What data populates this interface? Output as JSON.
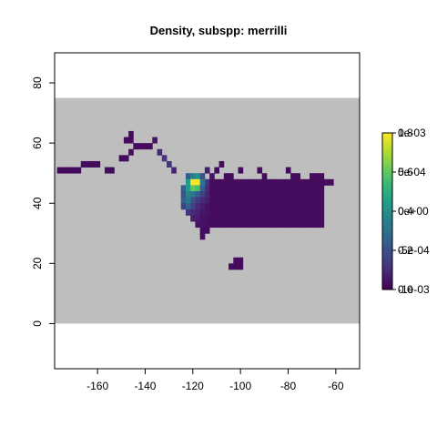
{
  "chart_data": {
    "type": "heatmap",
    "title": "Density, subspp: merrilli",
    "xlabel": "",
    "ylabel": "",
    "xlim": [
      -178,
      -50
    ],
    "ylim": [
      -15,
      90
    ],
    "x_ticks": [
      -160,
      -140,
      -120,
      -100,
      -80,
      -60
    ],
    "y_ticks": [
      0,
      20,
      40,
      60,
      80
    ],
    "x_tick_labels": [
      "-160",
      "-140",
      "-120",
      "-100",
      "-80",
      "-60"
    ],
    "y_tick_labels": [
      "0",
      "20",
      "40",
      "60",
      "80"
    ],
    "raster_extent": {
      "xmin": -178,
      "xmax": -50,
      "ymin": 0,
      "ymax": 75
    },
    "raster_background_color": "#bebebe",
    "cell_size_degrees": 2,
    "colormap": "viridis",
    "legend": {
      "placement": "right",
      "overlapping_label_sets": [
        {
          "labels": [
            "1e-03",
            "5e-04",
            "0e+00",
            "-5e-04",
            "-1e-03"
          ],
          "values": [
            0.001,
            0.0005,
            0,
            -0.0005,
            -0.001
          ]
        },
        {
          "labels": [
            "0.8",
            "0.6",
            "0.4",
            "0.2",
            "0.0"
          ],
          "values": [
            0.8,
            0.6,
            0.4,
            0.2,
            0.0
          ]
        }
      ]
    },
    "cells": [
      [
        -176,
        51,
        0.03
      ],
      [
        -174,
        51,
        0.03
      ],
      [
        -172,
        51,
        0.03
      ],
      [
        -170,
        51,
        0.03
      ],
      [
        -168,
        51,
        0.03
      ],
      [
        -166,
        53,
        0.03
      ],
      [
        -164,
        53,
        0.03
      ],
      [
        -162,
        53,
        0.03
      ],
      [
        -160,
        53,
        0.03
      ],
      [
        -156,
        51,
        0.03
      ],
      [
        -154,
        51,
        0.03
      ],
      [
        -150,
        55,
        0.03
      ],
      [
        -148,
        55,
        0.03
      ],
      [
        -146,
        57,
        0.03
      ],
      [
        -144,
        59,
        0.03
      ],
      [
        -142,
        59,
        0.03
      ],
      [
        -140,
        59,
        0.03
      ],
      [
        -138,
        59,
        0.03
      ],
      [
        -148,
        61,
        0.03
      ],
      [
        -146,
        61,
        0.03
      ],
      [
        -146,
        63,
        0.03
      ],
      [
        -136,
        61,
        0.05
      ],
      [
        -134,
        57,
        0.1
      ],
      [
        -132,
        55,
        0.15
      ],
      [
        -130,
        53,
        0.15
      ],
      [
        -128,
        51,
        0.1
      ],
      [
        -122,
        49,
        0.3
      ],
      [
        -120,
        49,
        0.45
      ],
      [
        -118,
        49,
        0.5
      ],
      [
        -116,
        49,
        0.25
      ],
      [
        -122,
        47,
        0.55
      ],
      [
        -120,
        47,
        1.0
      ],
      [
        -118,
        47,
        1.0
      ],
      [
        -116,
        47,
        0.4
      ],
      [
        -114,
        47,
        0.15
      ],
      [
        -124,
        45,
        0.3
      ],
      [
        -122,
        45,
        0.55
      ],
      [
        -120,
        45,
        0.75
      ],
      [
        -118,
        45,
        0.7
      ],
      [
        -116,
        45,
        0.3
      ],
      [
        -114,
        45,
        0.12
      ],
      [
        -124,
        43,
        0.25
      ],
      [
        -122,
        43,
        0.45
      ],
      [
        -120,
        43,
        0.4
      ],
      [
        -118,
        43,
        0.3
      ],
      [
        -116,
        43,
        0.2
      ],
      [
        -114,
        43,
        0.1
      ],
      [
        -124,
        41,
        0.3
      ],
      [
        -122,
        41,
        0.4
      ],
      [
        -120,
        41,
        0.25
      ],
      [
        -118,
        41,
        0.18
      ],
      [
        -116,
        41,
        0.12
      ],
      [
        -114,
        41,
        0.08
      ],
      [
        -124,
        39,
        0.2
      ],
      [
        -122,
        39,
        0.3
      ],
      [
        -120,
        39,
        0.2
      ],
      [
        -118,
        39,
        0.12
      ],
      [
        -116,
        39,
        0.08
      ],
      [
        -114,
        39,
        0.05
      ],
      [
        -122,
        37,
        0.15
      ],
      [
        -120,
        37,
        0.12
      ],
      [
        -118,
        37,
        0.1
      ],
      [
        -116,
        37,
        0.06
      ],
      [
        -114,
        37,
        0.05
      ],
      [
        -120,
        35,
        0.08
      ],
      [
        -118,
        35,
        0.08
      ],
      [
        -116,
        35,
        0.05
      ],
      [
        -114,
        35,
        0.04
      ],
      [
        -118,
        33,
        0.05
      ],
      [
        -116,
        33,
        0.05
      ],
      [
        -114,
        33,
        0.04
      ],
      [
        -112,
        33,
        0.03
      ],
      [
        -116,
        31,
        0.03
      ],
      [
        -114,
        31,
        0.03
      ],
      [
        -116,
        29,
        0.03
      ],
      [
        -102,
        21,
        0.03
      ],
      [
        -100,
        21,
        0.03
      ],
      [
        -104,
        19,
        0.03
      ],
      [
        -102,
        19,
        0.03
      ],
      [
        -100,
        19,
        0.03
      ],
      [
        -114,
        51,
        0.08
      ],
      [
        -112,
        49,
        0.05
      ],
      [
        -110,
        51,
        0.03
      ],
      [
        -108,
        53,
        0.03
      ],
      [
        -106,
        49,
        0.03
      ],
      [
        -104,
        49,
        0.03
      ],
      [
        -100,
        51,
        0.03
      ],
      [
        -96,
        47,
        0.03
      ],
      [
        -92,
        51,
        0.03
      ],
      [
        -90,
        49,
        0.03
      ],
      [
        -80,
        51,
        0.03
      ],
      [
        -78,
        49,
        0.03
      ],
      [
        -76,
        49,
        0.03
      ],
      [
        -70,
        49,
        0.03
      ],
      [
        -68,
        49,
        0.03
      ],
      [
        -66,
        49,
        0.03
      ],
      [
        -66,
        47,
        0.03
      ],
      [
        -64,
        47,
        0.03
      ],
      [
        -62,
        47,
        0.03
      ]
    ],
    "cells_fill_bbox": {
      "xmin": -114,
      "xmax": -66,
      "ymin": 33,
      "ymax": 47,
      "value": 0.03
    }
  }
}
